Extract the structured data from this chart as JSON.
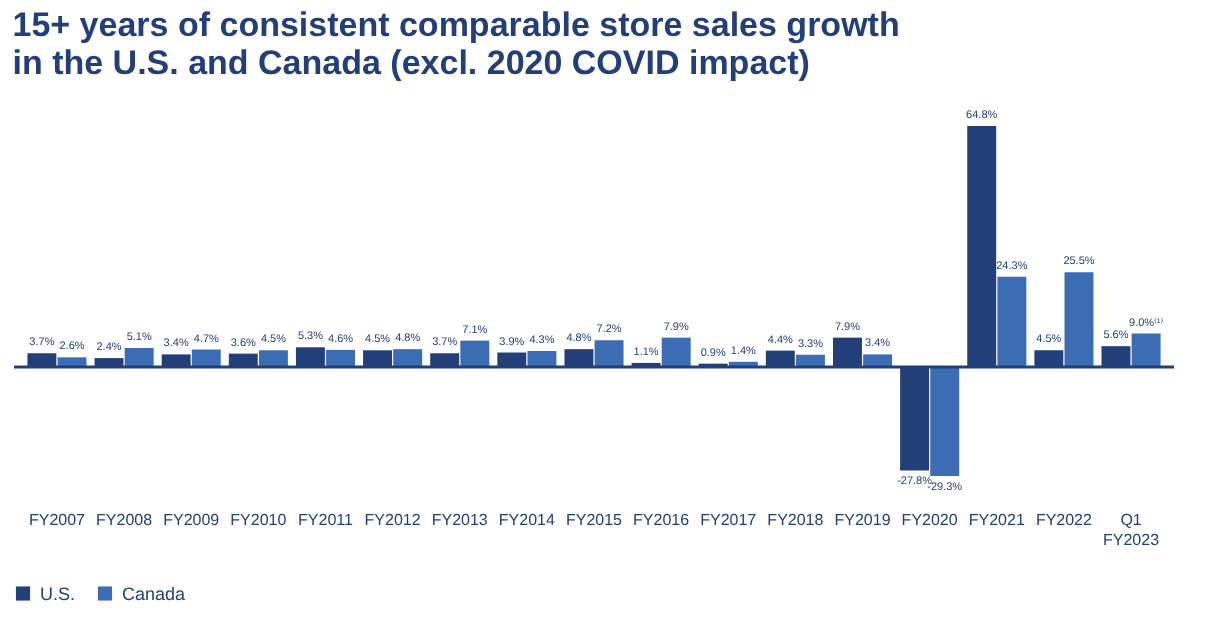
{
  "chart_data": {
    "type": "bar",
    "title": [
      "15+ years of consistent comparable store sales growth",
      "in the U.S. and Canada (excl. 2020 COVID impact)"
    ],
    "categories": [
      "FY2007",
      "FY2008",
      "FY2009",
      "FY2010",
      "FY2011",
      "FY2012",
      "FY2013",
      "FY2014",
      "FY2015",
      "FY2016",
      "FY2017",
      "FY2018",
      "FY2019",
      "FY2020",
      "FY2021",
      "FY2022",
      "Q1 FY2023"
    ],
    "series": [
      {
        "name": "U.S.",
        "color": "#223f7a",
        "values": [
          3.7,
          2.4,
          3.4,
          3.6,
          5.3,
          4.5,
          3.7,
          3.9,
          4.8,
          1.1,
          0.9,
          4.4,
          7.9,
          -27.8,
          64.8,
          4.5,
          5.6
        ],
        "value_labels": [
          "3.7%",
          "2.4%",
          "3.4%",
          "3.6%",
          "5.3%",
          "4.5%",
          "3.7%",
          "3.9%",
          "4.8%",
          "1.1%",
          "0.9%",
          "4.4%",
          "7.9%",
          "-27.8%",
          "64.8%",
          "4.5%",
          "5.6%"
        ]
      },
      {
        "name": "Canada",
        "color": "#3c6cb4",
        "values": [
          2.6,
          5.1,
          4.7,
          4.5,
          4.6,
          4.8,
          7.1,
          4.3,
          7.2,
          7.9,
          1.4,
          3.3,
          3.4,
          -29.3,
          24.3,
          25.5,
          9.0
        ],
        "value_labels": [
          "2.6%",
          "5.1%",
          "4.7%",
          "4.5%",
          "4.6%",
          "4.8%",
          "7.1%",
          "4.3%",
          "7.2%",
          "7.9%",
          "1.4%",
          "3.3%",
          "3.4%",
          "-29.3%",
          "24.3%",
          "25.5%",
          "9.0%⁽¹⁾"
        ]
      }
    ],
    "ref_lines": [
      {
        "axis": "y",
        "value": 0,
        "color": "#223f7a"
      }
    ],
    "legend": "bottom"
  }
}
